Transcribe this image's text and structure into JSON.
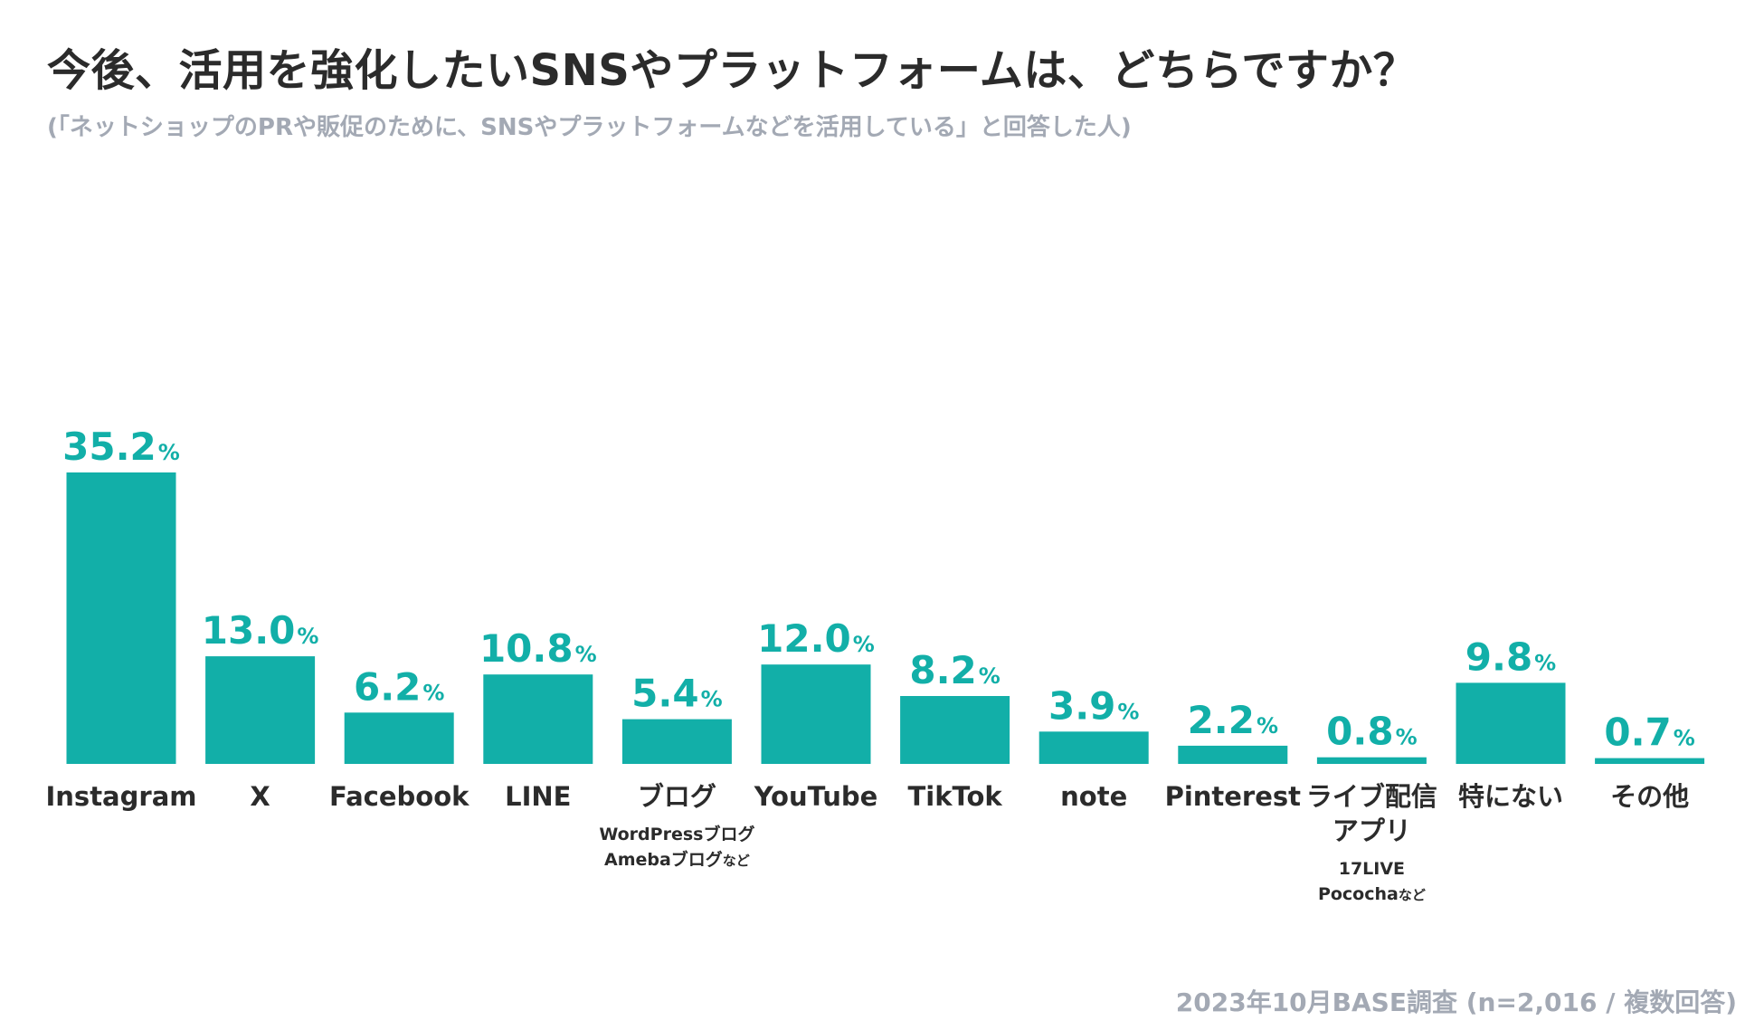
{
  "header": {
    "title": "今後、活用を強化したいSNSやプラットフォームは、どちらですか？",
    "subtitle": "(「ネットショップのPRや販促のために、SNSやプラットフォームなどを活用している」と回答した人)"
  },
  "footer": {
    "source": "2023年10月BASE調査 (n=2,016 / 複数回答)"
  },
  "colors": {
    "bar": "#12afa8",
    "title": "#2b2b2b",
    "subtle": "#a3a9b4"
  },
  "chart_data": {
    "type": "bar",
    "title": "今後、活用を強化したいSNSやプラットフォームは、どちらですか？",
    "xlabel": "",
    "ylabel": "",
    "unit": "%",
    "ylim": [
      0,
      35.2
    ],
    "categories": [
      {
        "label": [
          "Instagram"
        ],
        "note": [],
        "value": 35.2,
        "value_text": "35.2"
      },
      {
        "label": [
          "X"
        ],
        "note": [],
        "value": 13.0,
        "value_text": "13.0"
      },
      {
        "label": [
          "Facebook"
        ],
        "note": [],
        "value": 6.2,
        "value_text": "6.2"
      },
      {
        "label": [
          "LINE"
        ],
        "note": [],
        "value": 10.8,
        "value_text": "10.8"
      },
      {
        "label": [
          "ブログ"
        ],
        "note": [
          {
            "text": "WordPressブログ",
            "suffix": ""
          },
          {
            "text": "Amebaブログ",
            "suffix": "など"
          }
        ],
        "value": 5.4,
        "value_text": "5.4"
      },
      {
        "label": [
          "YouTube"
        ],
        "note": [],
        "value": 12.0,
        "value_text": "12.0"
      },
      {
        "label": [
          "TikTok"
        ],
        "note": [],
        "value": 8.2,
        "value_text": "8.2"
      },
      {
        "label": [
          "note"
        ],
        "note": [],
        "value": 3.9,
        "value_text": "3.9"
      },
      {
        "label": [
          "Pinterest"
        ],
        "note": [],
        "value": 2.2,
        "value_text": "2.2"
      },
      {
        "label": [
          "ライブ配信",
          "アプリ"
        ],
        "note": [
          {
            "text": "17LIVE",
            "suffix": ""
          },
          {
            "text": "Pococha",
            "suffix": "など"
          }
        ],
        "value": 0.8,
        "value_text": "0.8"
      },
      {
        "label": [
          "特にない"
        ],
        "note": [],
        "value": 9.8,
        "value_text": "9.8"
      },
      {
        "label": [
          "その他"
        ],
        "note": [],
        "value": 0.7,
        "value_text": "0.7"
      }
    ]
  }
}
